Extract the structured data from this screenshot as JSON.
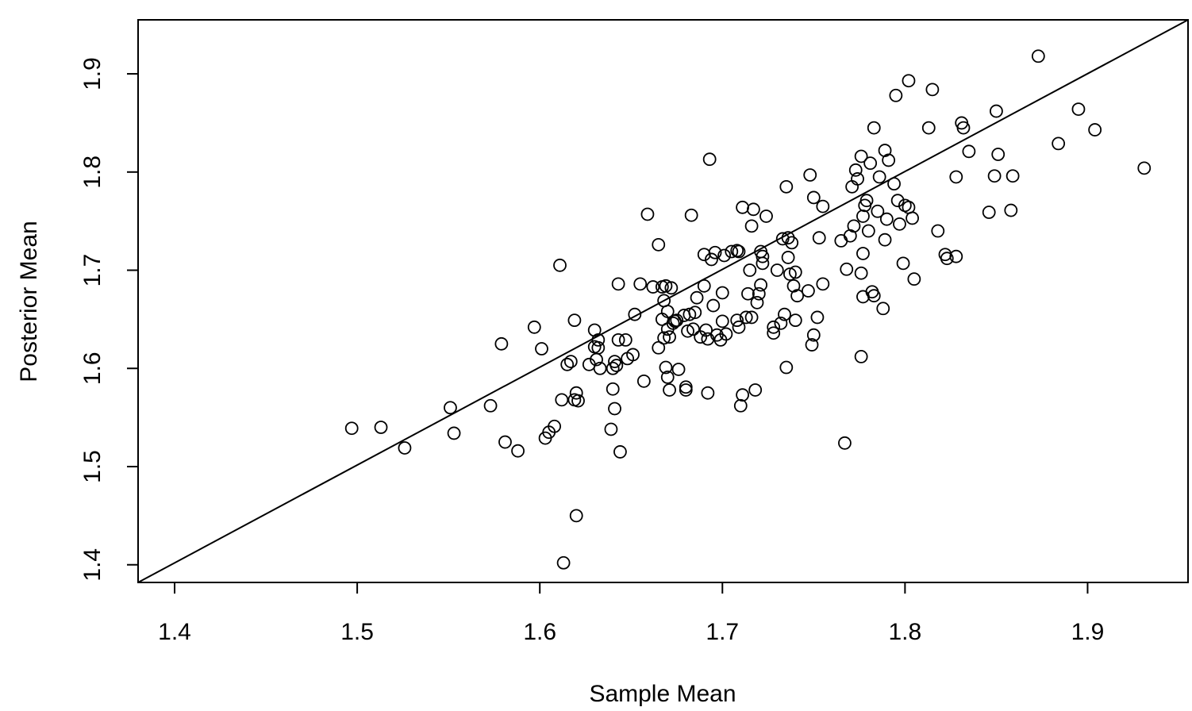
{
  "chart_data": {
    "type": "scatter",
    "title": "",
    "xlabel": "Sample Mean",
    "ylabel": "Posterior Mean",
    "xlim": [
      1.38,
      1.955
    ],
    "ylim": [
      1.382,
      1.955
    ],
    "xticks": [
      "1.4",
      "1.5",
      "1.6",
      "1.7",
      "1.8",
      "1.9"
    ],
    "yticks": [
      "1.4",
      "1.5",
      "1.6",
      "1.7",
      "1.8",
      "1.9"
    ],
    "grid": false,
    "legend": "none",
    "marker": "open-circle",
    "color": "#000000",
    "reference_line": {
      "slope": 1,
      "intercept": 0
    },
    "points": [
      [
        1.497,
        1.539
      ],
      [
        1.513,
        1.54
      ],
      [
        1.526,
        1.519
      ],
      [
        1.551,
        1.56
      ],
      [
        1.553,
        1.534
      ],
      [
        1.573,
        1.562
      ],
      [
        1.579,
        1.625
      ],
      [
        1.581,
        1.525
      ],
      [
        1.588,
        1.516
      ],
      [
        1.597,
        1.642
      ],
      [
        1.601,
        1.62
      ],
      [
        1.603,
        1.529
      ],
      [
        1.605,
        1.535
      ],
      [
        1.608,
        1.541
      ],
      [
        1.611,
        1.705
      ],
      [
        1.613,
        1.402
      ],
      [
        1.615,
        1.604
      ],
      [
        1.617,
        1.607
      ],
      [
        1.619,
        1.649
      ],
      [
        1.619,
        1.568
      ],
      [
        1.62,
        1.575
      ],
      [
        1.62,
        1.45
      ],
      [
        1.612,
        1.568
      ],
      [
        1.621,
        1.567
      ],
      [
        1.627,
        1.604
      ],
      [
        1.63,
        1.639
      ],
      [
        1.63,
        1.622
      ],
      [
        1.631,
        1.609
      ],
      [
        1.632,
        1.629
      ],
      [
        1.632,
        1.621
      ],
      [
        1.633,
        1.6
      ],
      [
        1.639,
        1.538
      ],
      [
        1.64,
        1.579
      ],
      [
        1.64,
        1.6
      ],
      [
        1.641,
        1.559
      ],
      [
        1.641,
        1.607
      ],
      [
        1.642,
        1.603
      ],
      [
        1.643,
        1.629
      ],
      [
        1.643,
        1.686
      ],
      [
        1.644,
        1.515
      ],
      [
        1.647,
        1.629
      ],
      [
        1.648,
        1.61
      ],
      [
        1.651,
        1.614
      ],
      [
        1.652,
        1.655
      ],
      [
        1.655,
        1.686
      ],
      [
        1.657,
        1.587
      ],
      [
        1.659,
        1.757
      ],
      [
        1.662,
        1.683
      ],
      [
        1.665,
        1.726
      ],
      [
        1.665,
        1.621
      ],
      [
        1.667,
        1.683
      ],
      [
        1.667,
        1.65
      ],
      [
        1.668,
        1.669
      ],
      [
        1.668,
        1.631
      ],
      [
        1.669,
        1.601
      ],
      [
        1.669,
        1.684
      ],
      [
        1.67,
        1.591
      ],
      [
        1.67,
        1.658
      ],
      [
        1.67,
        1.64
      ],
      [
        1.671,
        1.632
      ],
      [
        1.671,
        1.578
      ],
      [
        1.672,
        1.682
      ],
      [
        1.673,
        1.646
      ],
      [
        1.674,
        1.648
      ],
      [
        1.675,
        1.649
      ],
      [
        1.676,
        1.599
      ],
      [
        1.679,
        1.654
      ],
      [
        1.68,
        1.578
      ],
      [
        1.68,
        1.581
      ],
      [
        1.681,
        1.638
      ],
      [
        1.682,
        1.655
      ],
      [
        1.683,
        1.756
      ],
      [
        1.684,
        1.64
      ],
      [
        1.685,
        1.657
      ],
      [
        1.686,
        1.672
      ],
      [
        1.688,
        1.632
      ],
      [
        1.69,
        1.684
      ],
      [
        1.69,
        1.716
      ],
      [
        1.691,
        1.639
      ],
      [
        1.692,
        1.63
      ],
      [
        1.692,
        1.575
      ],
      [
        1.693,
        1.813
      ],
      [
        1.694,
        1.711
      ],
      [
        1.695,
        1.664
      ],
      [
        1.696,
        1.718
      ],
      [
        1.697,
        1.634
      ],
      [
        1.699,
        1.629
      ],
      [
        1.7,
        1.648
      ],
      [
        1.7,
        1.677
      ],
      [
        1.701,
        1.715
      ],
      [
        1.702,
        1.635
      ],
      [
        1.705,
        1.719
      ],
      [
        1.708,
        1.72
      ],
      [
        1.708,
        1.649
      ],
      [
        1.709,
        1.642
      ],
      [
        1.709,
        1.719
      ],
      [
        1.71,
        1.562
      ],
      [
        1.711,
        1.764
      ],
      [
        1.711,
        1.573
      ],
      [
        1.713,
        1.652
      ],
      [
        1.714,
        1.676
      ],
      [
        1.715,
        1.7
      ],
      [
        1.716,
        1.652
      ],
      [
        1.716,
        1.745
      ],
      [
        1.717,
        1.762
      ],
      [
        1.718,
        1.578
      ],
      [
        1.719,
        1.667
      ],
      [
        1.72,
        1.676
      ],
      [
        1.721,
        1.719
      ],
      [
        1.721,
        1.685
      ],
      [
        1.722,
        1.714
      ],
      [
        1.722,
        1.707
      ],
      [
        1.724,
        1.755
      ],
      [
        1.728,
        1.636
      ],
      [
        1.728,
        1.642
      ],
      [
        1.73,
        1.7
      ],
      [
        1.732,
        1.646
      ],
      [
        1.733,
        1.732
      ],
      [
        1.734,
        1.655
      ],
      [
        1.735,
        1.601
      ],
      [
        1.735,
        1.785
      ],
      [
        1.736,
        1.733
      ],
      [
        1.736,
        1.713
      ],
      [
        1.737,
        1.696
      ],
      [
        1.738,
        1.728
      ],
      [
        1.739,
        1.684
      ],
      [
        1.74,
        1.649
      ],
      [
        1.74,
        1.698
      ],
      [
        1.741,
        1.674
      ],
      [
        1.747,
        1.679
      ],
      [
        1.748,
        1.797
      ],
      [
        1.749,
        1.624
      ],
      [
        1.75,
        1.774
      ],
      [
        1.75,
        1.634
      ],
      [
        1.752,
        1.652
      ],
      [
        1.753,
        1.733
      ],
      [
        1.755,
        1.686
      ],
      [
        1.755,
        1.765
      ],
      [
        1.765,
        1.73
      ],
      [
        1.767,
        1.524
      ],
      [
        1.768,
        1.701
      ],
      [
        1.77,
        1.735
      ],
      [
        1.771,
        1.785
      ],
      [
        1.772,
        1.745
      ],
      [
        1.773,
        1.802
      ],
      [
        1.774,
        1.793
      ],
      [
        1.776,
        1.816
      ],
      [
        1.776,
        1.697
      ],
      [
        1.776,
        1.612
      ],
      [
        1.777,
        1.717
      ],
      [
        1.777,
        1.673
      ],
      [
        1.777,
        1.755
      ],
      [
        1.778,
        1.766
      ],
      [
        1.779,
        1.771
      ],
      [
        1.78,
        1.74
      ],
      [
        1.781,
        1.809
      ],
      [
        1.782,
        1.678
      ],
      [
        1.783,
        1.674
      ],
      [
        1.783,
        1.845
      ],
      [
        1.785,
        1.76
      ],
      [
        1.786,
        1.795
      ],
      [
        1.788,
        1.661
      ],
      [
        1.789,
        1.731
      ],
      [
        1.789,
        1.822
      ],
      [
        1.79,
        1.752
      ],
      [
        1.791,
        1.812
      ],
      [
        1.794,
        1.788
      ],
      [
        1.795,
        1.878
      ],
      [
        1.796,
        1.771
      ],
      [
        1.797,
        1.747
      ],
      [
        1.799,
        1.707
      ],
      [
        1.8,
        1.766
      ],
      [
        1.802,
        1.893
      ],
      [
        1.802,
        1.764
      ],
      [
        1.804,
        1.753
      ],
      [
        1.805,
        1.691
      ],
      [
        1.813,
        1.845
      ],
      [
        1.815,
        1.884
      ],
      [
        1.818,
        1.74
      ],
      [
        1.822,
        1.716
      ],
      [
        1.823,
        1.712
      ],
      [
        1.828,
        1.795
      ],
      [
        1.828,
        1.714
      ],
      [
        1.831,
        1.85
      ],
      [
        1.832,
        1.845
      ],
      [
        1.835,
        1.821
      ],
      [
        1.846,
        1.759
      ],
      [
        1.849,
        1.796
      ],
      [
        1.85,
        1.862
      ],
      [
        1.851,
        1.818
      ],
      [
        1.858,
        1.761
      ],
      [
        1.859,
        1.796
      ],
      [
        1.873,
        1.918
      ],
      [
        1.884,
        1.829
      ],
      [
        1.895,
        1.864
      ],
      [
        1.904,
        1.843
      ],
      [
        1.931,
        1.804
      ]
    ]
  }
}
